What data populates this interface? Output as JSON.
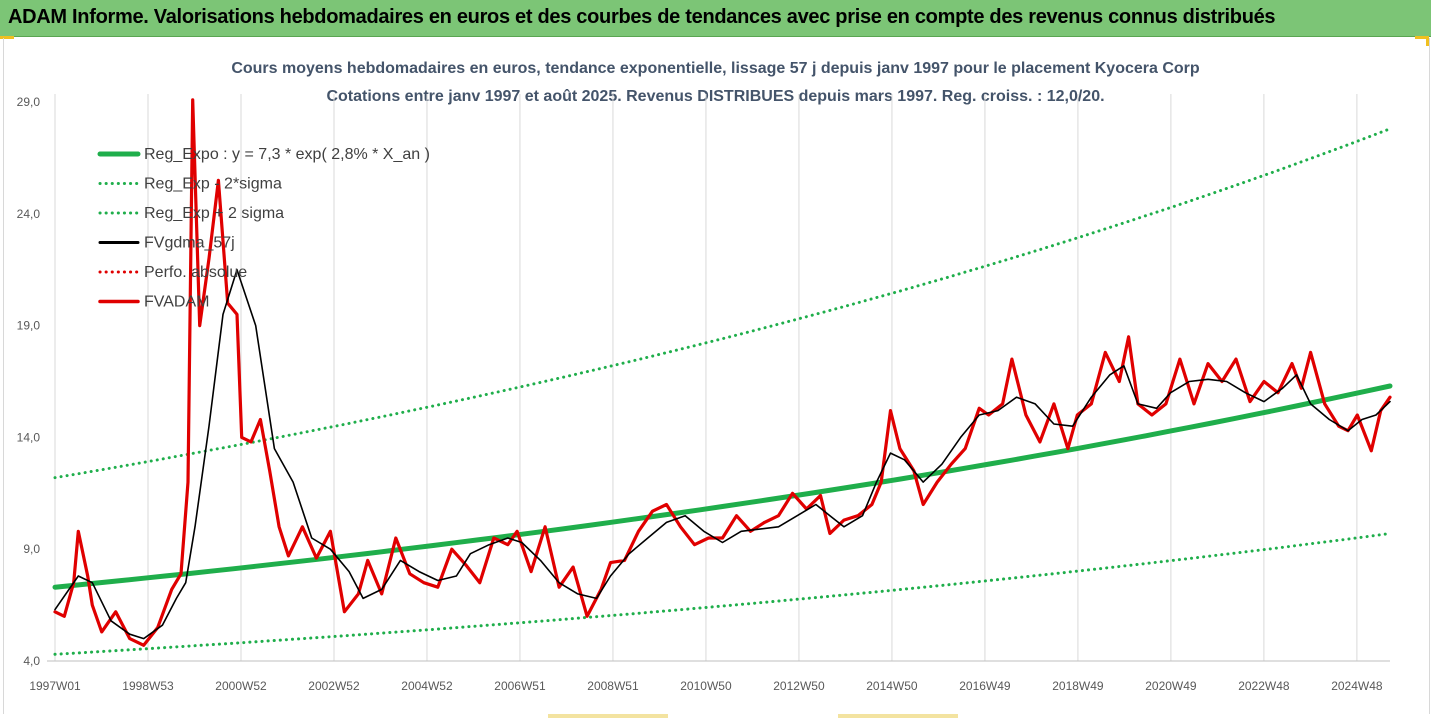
{
  "banner": {
    "title": "ADAM Informe. Valorisations hebdomadaires en euros et des courbes de tendances avec prise en compte des revenus connus distribués"
  },
  "chart_data": {
    "type": "line",
    "title": "Cours moyens hebdomadaires en euros, tendance exponentielle, lissage 57 j depuis janv 1997 pour le placement Kyocera Corp",
    "subtitle": "Cotations entre janv 1997 et août 2025. Revenus DISTRIBUES depuis mars 1997. Reg. croiss. : 12,0/20.",
    "x_range": [
      1997.0,
      2025.6
    ],
    "ylim": [
      4.0,
      29.0
    ],
    "y_ticks": [
      "4,0",
      "9,0",
      "14,0",
      "19,0",
      "24,0",
      "29,0"
    ],
    "x_ticks": [
      "1997W01",
      "1998W53",
      "2000W52",
      "2002W52",
      "2004W52",
      "2006W51",
      "2008W51",
      "2010W50",
      "2012W50",
      "2014W50",
      "2016W49",
      "2018W49",
      "2020W49",
      "2022W48",
      "2024W48"
    ],
    "grid": "vertical",
    "legend_position": "top-left",
    "series": [
      {
        "name": "Reg_Expo : y = 7,3 * exp( 2,8% *  X_an )",
        "color": "#1fae4b",
        "style": "solid",
        "x": [
          1997.0,
          2025.6
        ],
        "values": [
          7.3,
          16.3
        ]
      },
      {
        "name": "Reg_Exp - 2*sigma",
        "color": "#1fae4b",
        "style": "dotted",
        "x": [
          1997.0,
          2025.6
        ],
        "values": [
          4.3,
          9.7
        ]
      },
      {
        "name": "Reg_Exp + 2 sigma",
        "color": "#1fae4b",
        "style": "dotted",
        "x": [
          1997.0,
          2025.6
        ],
        "values": [
          12.2,
          27.8
        ]
      },
      {
        "name": "FVgdma_57j",
        "color": "#000000",
        "style": "solid",
        "x": [
          1997.0,
          1997.5,
          1997.8,
          1998.2,
          1998.6,
          1998.9,
          1999.3,
          1999.6,
          1999.8,
          2000.0,
          2000.3,
          2000.6,
          2000.9,
          2001.3,
          2001.7,
          2002.1,
          2002.5,
          2002.9,
          2003.3,
          2003.6,
          2004.0,
          2004.4,
          2004.8,
          2005.2,
          2005.6,
          2005.9,
          2006.3,
          2006.7,
          2007.0,
          2007.4,
          2007.8,
          2008.2,
          2008.6,
          2008.9,
          2009.3,
          2009.7,
          2010.1,
          2010.5,
          2010.9,
          2011.3,
          2011.7,
          2012.1,
          2012.5,
          2012.9,
          2013.3,
          2013.6,
          2013.9,
          2014.3,
          2014.6,
          2014.9,
          2015.2,
          2015.6,
          2016.0,
          2016.4,
          2016.8,
          2017.2,
          2017.6,
          2018.0,
          2018.4,
          2018.8,
          2019.2,
          2019.6,
          2019.9,
          2020.2,
          2020.6,
          2020.9,
          2021.3,
          2021.7,
          2022.1,
          2022.5,
          2022.9,
          2023.3,
          2023.6,
          2023.9,
          2024.3,
          2024.7,
          2025.0,
          2025.3,
          2025.6
        ],
        "values": [
          6.3,
          7.8,
          7.5,
          5.8,
          5.2,
          5.0,
          5.6,
          6.8,
          7.5,
          10.0,
          14.5,
          19.5,
          21.5,
          19.0,
          13.5,
          12.0,
          9.5,
          9.0,
          8.0,
          6.8,
          7.2,
          8.5,
          8.0,
          7.6,
          7.8,
          8.8,
          9.2,
          9.5,
          9.3,
          8.5,
          7.5,
          7.0,
          6.8,
          7.8,
          8.8,
          9.5,
          10.2,
          10.5,
          9.8,
          9.3,
          9.8,
          9.9,
          10.0,
          10.5,
          11.0,
          10.5,
          10.0,
          10.5,
          12.0,
          13.3,
          13.0,
          12.0,
          12.8,
          14.0,
          15.0,
          15.2,
          15.8,
          15.5,
          14.6,
          14.5,
          15.8,
          16.8,
          17.2,
          15.5,
          15.3,
          16.0,
          16.5,
          16.6,
          16.5,
          16.0,
          15.6,
          16.2,
          16.8,
          15.5,
          14.8,
          14.3,
          14.8,
          15.0,
          15.6
        ]
      },
      {
        "name": "Perfo. absolue",
        "color": "#e00000",
        "style": "dotted",
        "x": [],
        "values": []
      },
      {
        "name": "FVADAM",
        "color": "#e00000",
        "style": "solid",
        "x": [
          1997.0,
          1997.2,
          1997.4,
          1997.5,
          1997.7,
          1997.8,
          1998.0,
          1998.3,
          1998.6,
          1998.9,
          1999.2,
          1999.5,
          1999.7,
          1999.85,
          1999.95,
          2000.1,
          2000.3,
          2000.5,
          2000.7,
          2000.9,
          2001.0,
          2001.2,
          2001.4,
          2001.6,
          2001.8,
          2002.0,
          2002.3,
          2002.6,
          2002.9,
          2003.2,
          2003.5,
          2003.7,
          2004.0,
          2004.3,
          2004.6,
          2004.9,
          2005.2,
          2005.5,
          2005.8,
          2006.1,
          2006.4,
          2006.7,
          2006.9,
          2007.2,
          2007.5,
          2007.8,
          2008.1,
          2008.4,
          2008.7,
          2008.9,
          2009.2,
          2009.5,
          2009.8,
          2010.1,
          2010.4,
          2010.7,
          2011.0,
          2011.3,
          2011.6,
          2011.9,
          2012.2,
          2012.5,
          2012.8,
          2013.1,
          2013.4,
          2013.6,
          2013.9,
          2014.2,
          2014.5,
          2014.7,
          2014.9,
          2015.1,
          2015.4,
          2015.6,
          2015.9,
          2016.2,
          2016.5,
          2016.8,
          2017.0,
          2017.3,
          2017.5,
          2017.8,
          2018.1,
          2018.4,
          2018.7,
          2018.9,
          2019.2,
          2019.5,
          2019.8,
          2020.0,
          2020.2,
          2020.5,
          2020.8,
          2021.1,
          2021.4,
          2021.7,
          2022.0,
          2022.3,
          2022.6,
          2022.9,
          2023.2,
          2023.5,
          2023.7,
          2023.9,
          2024.2,
          2024.5,
          2024.7,
          2024.9,
          2025.2,
          2025.4,
          2025.6
        ],
        "values": [
          6.2,
          6.0,
          7.5,
          9.8,
          7.8,
          6.5,
          5.3,
          6.2,
          5.0,
          4.7,
          5.5,
          7.2,
          7.9,
          12.0,
          29.1,
          19.0,
          22.0,
          25.5,
          20.0,
          19.5,
          14.0,
          13.8,
          14.8,
          12.5,
          10.0,
          8.7,
          10.0,
          8.6,
          9.8,
          6.2,
          7.0,
          8.5,
          7.0,
          9.5,
          7.9,
          7.5,
          7.3,
          9.0,
          8.3,
          7.5,
          9.5,
          9.2,
          9.8,
          8.0,
          10.0,
          7.3,
          8.2,
          6.0,
          7.2,
          8.4,
          8.5,
          9.8,
          10.7,
          11.0,
          10.0,
          9.2,
          9.5,
          9.5,
          10.5,
          9.8,
          10.2,
          10.5,
          11.5,
          10.8,
          11.4,
          9.7,
          10.3,
          10.5,
          11.0,
          12.0,
          15.2,
          13.5,
          12.5,
          11.0,
          12.0,
          12.8,
          13.5,
          15.3,
          15.0,
          15.5,
          17.5,
          15.0,
          13.8,
          15.5,
          13.5,
          15.0,
          15.5,
          17.8,
          16.5,
          18.5,
          15.5,
          15.0,
          15.5,
          17.5,
          15.5,
          17.3,
          16.5,
          17.5,
          15.6,
          16.5,
          16.0,
          17.3,
          16.2,
          17.8,
          15.5,
          14.5,
          14.3,
          15.0,
          13.4,
          15.2,
          15.8
        ]
      }
    ]
  }
}
